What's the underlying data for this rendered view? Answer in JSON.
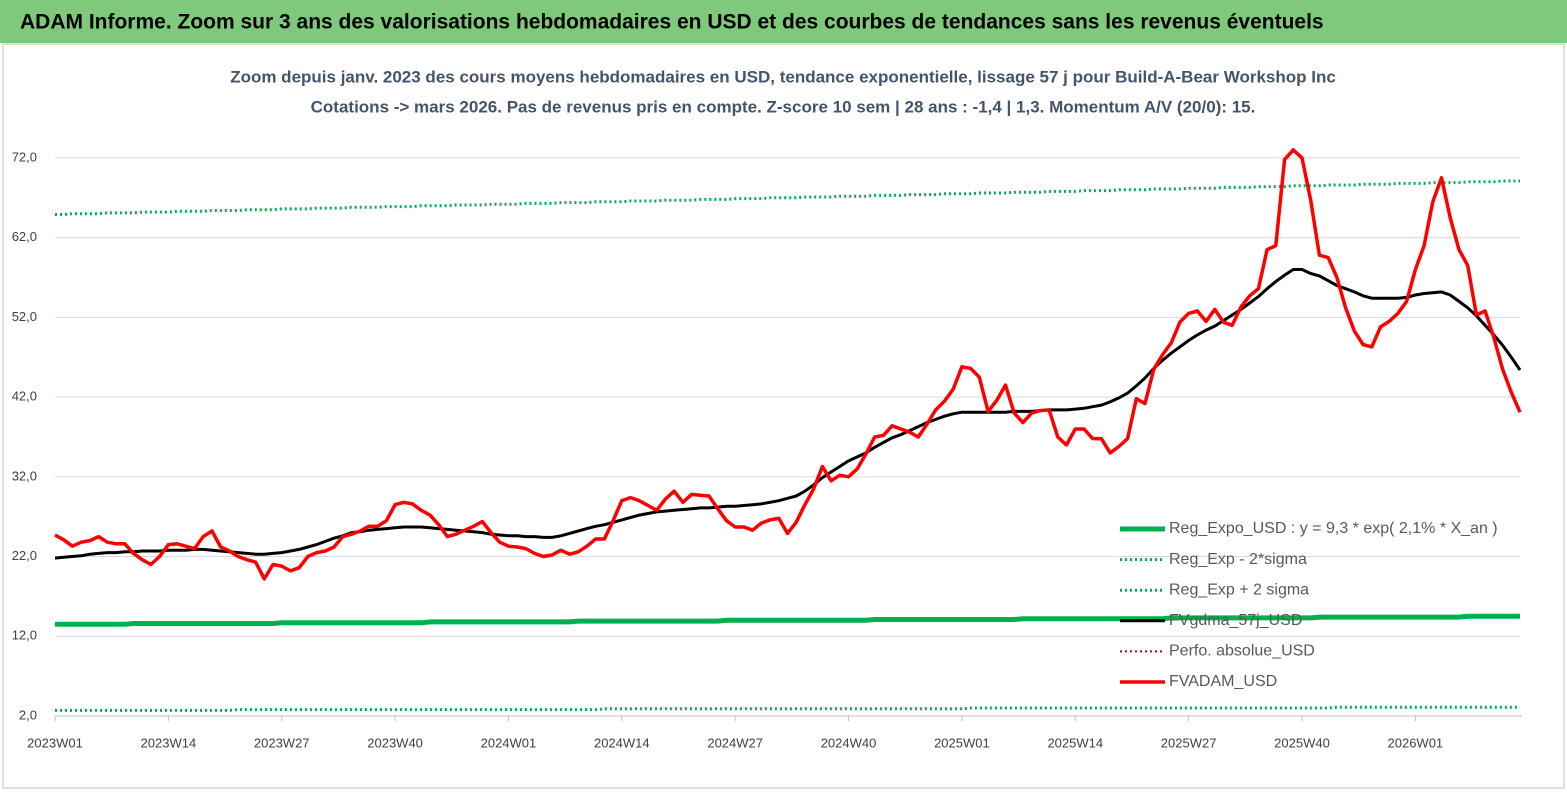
{
  "header": "ADAM Informe. Zoom sur 3 ans des valorisations hebdomadaires en USD et des courbes de tendances sans les revenus éventuels",
  "chart_data": {
    "type": "line",
    "title": "Zoom depuis janv. 2023 des cours moyens hebdomadaires en USD, tendance exponentielle, lissage 57 j pour Build-A-Bear Workshop Inc",
    "subtitle": "Cotations -> mars 2026. Pas de revenus pris en compte. Z-score 10 sem | 28 ans : -1,4 | 1,3. Momentum A/V (20/0): 15.",
    "categories": [
      "2023W01",
      null,
      null,
      null,
      null,
      null,
      null,
      null,
      null,
      null,
      null,
      null,
      null,
      "2023W14",
      null,
      null,
      null,
      null,
      null,
      null,
      null,
      null,
      null,
      null,
      null,
      null,
      "2023W27",
      null,
      null,
      null,
      null,
      null,
      null,
      null,
      null,
      null,
      null,
      null,
      null,
      "2023W40",
      null,
      null,
      null,
      null,
      null,
      null,
      null,
      null,
      null,
      null,
      null,
      null,
      "2024W01",
      null,
      null,
      null,
      null,
      null,
      null,
      null,
      null,
      null,
      null,
      null,
      null,
      "2024W14",
      null,
      null,
      null,
      null,
      null,
      null,
      null,
      null,
      null,
      null,
      null,
      null,
      "2024W27",
      null,
      null,
      null,
      null,
      null,
      null,
      null,
      null,
      null,
      null,
      null,
      null,
      "2024W40",
      null,
      null,
      null,
      null,
      null,
      null,
      null,
      null,
      null,
      null,
      null,
      null,
      "2025W01",
      null,
      null,
      null,
      null,
      null,
      null,
      null,
      null,
      null,
      null,
      null,
      null,
      "2025W14",
      null,
      null,
      null,
      null,
      null,
      null,
      null,
      null,
      null,
      null,
      null,
      null,
      "2025W27",
      null,
      null,
      null,
      null,
      null,
      null,
      null,
      null,
      null,
      null,
      null,
      null,
      "2025W40",
      null,
      null,
      null,
      null,
      null,
      null,
      null,
      null,
      null,
      null,
      null,
      null,
      "2026W01",
      null,
      null,
      null,
      null,
      null,
      null,
      null,
      null,
      null,
      null,
      null,
      null
    ],
    "series": [
      {
        "name": "Reg_Expo_USD : y = 9,3 * exp( 2,1% * X_an )",
        "color": "#00b050",
        "style": "solid",
        "width": 5,
        "values": [
          13.5,
          13.5,
          13.5,
          13.5,
          13.5,
          13.5,
          13.5,
          13.5,
          13.5,
          13.6,
          13.6,
          13.6,
          13.6,
          13.6,
          13.6,
          13.6,
          13.6,
          13.6,
          13.6,
          13.6,
          13.6,
          13.6,
          13.6,
          13.6,
          13.6,
          13.6,
          13.7,
          13.7,
          13.7,
          13.7,
          13.7,
          13.7,
          13.7,
          13.7,
          13.7,
          13.7,
          13.7,
          13.7,
          13.7,
          13.7,
          13.7,
          13.7,
          13.7,
          13.8,
          13.8,
          13.8,
          13.8,
          13.8,
          13.8,
          13.8,
          13.8,
          13.8,
          13.8,
          13.8,
          13.8,
          13.8,
          13.8,
          13.8,
          13.8,
          13.8,
          13.9,
          13.9,
          13.9,
          13.9,
          13.9,
          13.9,
          13.9,
          13.9,
          13.9,
          13.9,
          13.9,
          13.9,
          13.9,
          13.9,
          13.9,
          13.9,
          13.9,
          14.0,
          14.0,
          14.0,
          14.0,
          14.0,
          14.0,
          14.0,
          14.0,
          14.0,
          14.0,
          14.0,
          14.0,
          14.0,
          14.0,
          14.0,
          14.0,
          14.0,
          14.1,
          14.1,
          14.1,
          14.1,
          14.1,
          14.1,
          14.1,
          14.1,
          14.1,
          14.1,
          14.1,
          14.1,
          14.1,
          14.1,
          14.1,
          14.1,
          14.1,
          14.2,
          14.2,
          14.2,
          14.2,
          14.2,
          14.2,
          14.2,
          14.2,
          14.2,
          14.2,
          14.2,
          14.2,
          14.2,
          14.2,
          14.2,
          14.2,
          14.2,
          14.3,
          14.3,
          14.3,
          14.3,
          14.3,
          14.3,
          14.3,
          14.3,
          14.3,
          14.3,
          14.3,
          14.3,
          14.3,
          14.3,
          14.3,
          14.3,
          14.3,
          14.4,
          14.4,
          14.4,
          14.4,
          14.4,
          14.4,
          14.4,
          14.4,
          14.4,
          14.4,
          14.4,
          14.4,
          14.4,
          14.4,
          14.4,
          14.4,
          14.4,
          14.5,
          14.5,
          14.5,
          14.5,
          14.5,
          14.5,
          14.5
        ]
      },
      {
        "name": "Reg_Exp - 2*sigma",
        "color": "#00b050",
        "style": "dotted",
        "width": 3,
        "values": [
          2.7,
          2.7,
          2.7,
          2.7,
          2.7,
          2.7,
          2.7,
          2.7,
          2.7,
          2.7,
          2.7,
          2.7,
          2.7,
          2.7,
          2.7,
          2.7,
          2.7,
          2.7,
          2.7,
          2.7,
          2.7,
          2.8,
          2.8,
          2.8,
          2.8,
          2.8,
          2.8,
          2.8,
          2.8,
          2.8,
          2.8,
          2.8,
          2.8,
          2.8,
          2.8,
          2.8,
          2.8,
          2.8,
          2.8,
          2.8,
          2.8,
          2.8,
          2.8,
          2.8,
          2.8,
          2.8,
          2.8,
          2.8,
          2.8,
          2.8,
          2.8,
          2.8,
          2.8,
          2.8,
          2.8,
          2.8,
          2.8,
          2.8,
          2.8,
          2.8,
          2.8,
          2.8,
          2.8,
          2.9,
          2.9,
          2.9,
          2.9,
          2.9,
          2.9,
          2.9,
          2.9,
          2.9,
          2.9,
          2.9,
          2.9,
          2.9,
          2.9,
          2.9,
          2.9,
          2.9,
          2.9,
          2.9,
          2.9,
          2.9,
          2.9,
          2.9,
          2.9,
          2.9,
          2.9,
          2.9,
          2.9,
          2.9,
          2.9,
          2.9,
          2.9,
          2.9,
          2.9,
          2.9,
          2.9,
          2.9,
          2.9,
          2.9,
          2.9,
          2.9,
          2.9,
          3.0,
          3.0,
          3.0,
          3.0,
          3.0,
          3.0,
          3.0,
          3.0,
          3.0,
          3.0,
          3.0,
          3.0,
          3.0,
          3.0,
          3.0,
          3.0,
          3.0,
          3.0,
          3.0,
          3.0,
          3.0,
          3.0,
          3.0,
          3.0,
          3.0,
          3.0,
          3.0,
          3.0,
          3.0,
          3.0,
          3.0,
          3.0,
          3.0,
          3.0,
          3.0,
          3.0,
          3.0,
          3.0,
          3.0,
          3.0,
          3.0,
          3.0,
          3.1,
          3.1,
          3.1,
          3.1,
          3.1,
          3.1,
          3.1,
          3.1,
          3.1,
          3.1,
          3.1,
          3.1,
          3.1,
          3.1,
          3.1,
          3.1,
          3.1,
          3.1,
          3.1,
          3.1,
          3.1,
          3.1
        ]
      },
      {
        "name": "Reg_Exp + 2 sigma",
        "color": "#00b050",
        "style": "dotted",
        "width": 3,
        "values": [
          64.9,
          64.9,
          65.0,
          65.0,
          65.0,
          65.0,
          65.1,
          65.1,
          65.1,
          65.1,
          65.2,
          65.2,
          65.2,
          65.2,
          65.3,
          65.3,
          65.3,
          65.3,
          65.4,
          65.4,
          65.4,
          65.4,
          65.5,
          65.5,
          65.5,
          65.5,
          65.6,
          65.6,
          65.6,
          65.6,
          65.7,
          65.7,
          65.7,
          65.7,
          65.8,
          65.8,
          65.8,
          65.8,
          65.9,
          65.9,
          65.9,
          65.9,
          66.0,
          66.0,
          66.0,
          66.0,
          66.1,
          66.1,
          66.1,
          66.1,
          66.2,
          66.2,
          66.2,
          66.2,
          66.3,
          66.3,
          66.3,
          66.3,
          66.4,
          66.4,
          66.4,
          66.4,
          66.5,
          66.5,
          66.5,
          66.5,
          66.6,
          66.6,
          66.6,
          66.6,
          66.7,
          66.7,
          66.7,
          66.7,
          66.8,
          66.8,
          66.8,
          66.8,
          66.9,
          66.9,
          66.9,
          66.9,
          67.0,
          67.0,
          67.0,
          67.0,
          67.1,
          67.1,
          67.1,
          67.1,
          67.2,
          67.2,
          67.2,
          67.2,
          67.3,
          67.3,
          67.3,
          67.3,
          67.4,
          67.4,
          67.4,
          67.4,
          67.5,
          67.5,
          67.5,
          67.5,
          67.6,
          67.6,
          67.6,
          67.6,
          67.7,
          67.7,
          67.7,
          67.7,
          67.8,
          67.8,
          67.8,
          67.8,
          67.9,
          67.9,
          67.9,
          67.9,
          68.0,
          68.0,
          68.0,
          68.0,
          68.1,
          68.1,
          68.1,
          68.1,
          68.2,
          68.2,
          68.2,
          68.2,
          68.3,
          68.3,
          68.3,
          68.3,
          68.4,
          68.4,
          68.4,
          68.4,
          68.5,
          68.5,
          68.5,
          68.5,
          68.6,
          68.6,
          68.6,
          68.6,
          68.7,
          68.7,
          68.7,
          68.7,
          68.8,
          68.8,
          68.8,
          68.8,
          68.9,
          68.9,
          68.9,
          68.9,
          69.0,
          69.0,
          69.0,
          69.0,
          69.1,
          69.1,
          69.1
        ]
      },
      {
        "name": "FVgdma_57j_USD",
        "color": "#000000",
        "style": "solid",
        "width": 3,
        "values": [
          21.8,
          21.9,
          22.0,
          22.1,
          22.3,
          22.4,
          22.5,
          22.5,
          22.6,
          22.6,
          22.7,
          22.7,
          22.7,
          22.8,
          22.8,
          22.8,
          22.9,
          22.9,
          22.8,
          22.7,
          22.6,
          22.5,
          22.4,
          22.3,
          22.3,
          22.4,
          22.5,
          22.7,
          22.9,
          23.2,
          23.5,
          23.9,
          24.3,
          24.6,
          25.0,
          25.1,
          25.3,
          25.4,
          25.5,
          25.6,
          25.7,
          25.7,
          25.7,
          25.6,
          25.5,
          25.4,
          25.3,
          25.2,
          25.1,
          25.0,
          24.8,
          24.7,
          24.6,
          24.6,
          24.5,
          24.5,
          24.4,
          24.4,
          24.6,
          24.9,
          25.2,
          25.5,
          25.8,
          26.0,
          26.3,
          26.6,
          26.9,
          27.2,
          27.4,
          27.6,
          27.7,
          27.8,
          27.9,
          28.0,
          28.1,
          28.1,
          28.2,
          28.3,
          28.3,
          28.4,
          28.5,
          28.6,
          28.8,
          29.0,
          29.3,
          29.6,
          30.2,
          31.0,
          31.9,
          32.6,
          33.3,
          34.0,
          34.5,
          35.0,
          35.7,
          36.3,
          36.9,
          37.3,
          37.8,
          38.3,
          38.8,
          39.2,
          39.6,
          39.9,
          40.1,
          40.1,
          40.1,
          40.1,
          40.1,
          40.1,
          40.2,
          40.2,
          40.2,
          40.3,
          40.4,
          40.4,
          40.4,
          40.5,
          40.6,
          40.8,
          41.0,
          41.4,
          41.9,
          42.5,
          43.4,
          44.4,
          45.6,
          46.6,
          47.5,
          48.3,
          49.1,
          49.8,
          50.4,
          50.9,
          51.6,
          52.3,
          53.0,
          53.8,
          54.6,
          55.6,
          56.5,
          57.3,
          58.0,
          58.0,
          57.5,
          57.2,
          56.6,
          56.0,
          55.6,
          55.2,
          54.7,
          54.4,
          54.4,
          54.4,
          54.4,
          54.5,
          54.8,
          55.0,
          55.1,
          55.2,
          54.8,
          54.0,
          53.2,
          52.2,
          51.0,
          49.8,
          48.5,
          47.0,
          45.4
        ]
      },
      {
        "name": "Perfo. absolue_USD",
        "color": "#c00000",
        "style": "dotted",
        "width": 2
      },
      {
        "name": "FVADAM_USD",
        "color": "#ff0000",
        "style": "solid",
        "width": 3.5,
        "values": [
          24.7,
          24.1,
          23.3,
          23.8,
          24.0,
          24.5,
          23.8,
          23.6,
          23.6,
          22.4,
          21.6,
          21.0,
          22.0,
          23.5,
          23.6,
          23.3,
          23.0,
          24.5,
          25.2,
          23.2,
          22.7,
          22.0,
          21.6,
          21.3,
          19.2,
          21.0,
          20.8,
          20.2,
          20.6,
          22.0,
          22.5,
          22.7,
          23.2,
          24.5,
          24.8,
          25.2,
          25.8,
          25.8,
          26.5,
          28.5,
          28.8,
          28.6,
          27.8,
          27.2,
          26.0,
          24.5,
          24.8,
          25.3,
          25.8,
          26.4,
          25.0,
          23.8,
          23.3,
          23.2,
          23.0,
          22.4,
          22.0,
          22.2,
          22.8,
          22.3,
          22.6,
          23.3,
          24.2,
          24.2,
          26.5,
          29.0,
          29.4,
          29.0,
          28.4,
          27.8,
          29.2,
          30.2,
          28.8,
          29.8,
          29.7,
          29.6,
          28.0,
          26.5,
          25.7,
          25.7,
          25.3,
          26.2,
          26.6,
          26.8,
          24.9,
          26.3,
          28.5,
          30.5,
          33.3,
          31.5,
          32.2,
          32.0,
          33.0,
          34.9,
          37.0,
          37.2,
          38.4,
          38.0,
          37.6,
          37.0,
          38.6,
          40.4,
          41.5,
          43.0,
          45.8,
          45.6,
          44.5,
          40.2,
          41.6,
          43.5,
          40.0,
          38.8,
          40.0,
          40.3,
          40.4,
          37.0,
          36.0,
          38.0,
          38.0,
          36.8,
          36.8,
          35.0,
          35.8,
          36.8,
          41.8,
          41.2,
          45.5,
          47.3,
          48.8,
          51.4,
          52.5,
          52.8,
          51.5,
          53.0,
          51.4,
          51.0,
          53.3,
          54.7,
          55.6,
          60.5,
          61.0,
          71.8,
          73.0,
          72.0,
          66.7,
          59.8,
          59.5,
          57.0,
          53.2,
          50.3,
          48.6,
          48.3,
          50.8,
          51.5,
          52.5,
          54.0,
          58.0,
          61.0,
          66.5,
          69.5,
          64.5,
          60.5,
          58.5,
          52.3,
          52.8,
          49.5,
          45.5,
          42.6,
          40.1
        ]
      }
    ],
    "ylim": [
      2,
      75
    ],
    "yticks": [
      {
        "value": 2,
        "label": "2,0"
      },
      {
        "value": 12,
        "label": "12,0"
      },
      {
        "value": 22,
        "label": "22,0"
      },
      {
        "value": 32,
        "label": "32,0"
      },
      {
        "value": 42,
        "label": "42,0"
      },
      {
        "value": 52,
        "label": "52,0"
      },
      {
        "value": 62,
        "label": "62,0"
      },
      {
        "value": 72,
        "label": "72,0"
      }
    ],
    "grid": true,
    "legend": "lower right"
  }
}
